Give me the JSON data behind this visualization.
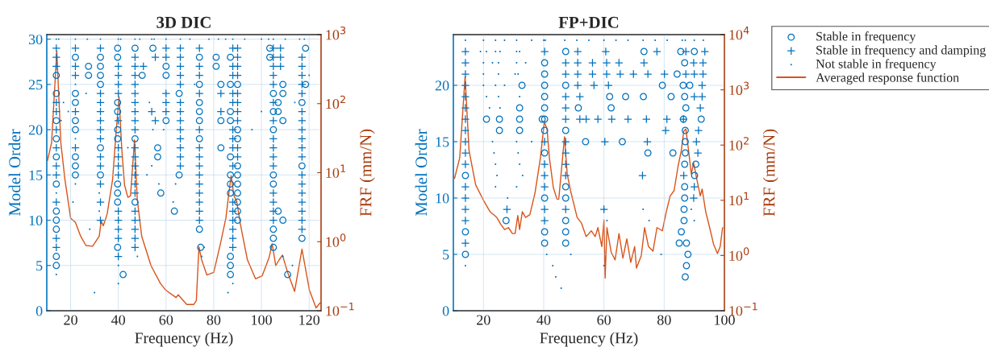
{
  "chart_data": [
    {
      "type": "scatter",
      "title": "3D DIC",
      "xlabel": "Frequency (Hz)",
      "ylabel": "Model Order",
      "y2label": "FRF (mm/N)",
      "xlim": [
        10,
        125
      ],
      "xticks": [
        20,
        40,
        60,
        80,
        100,
        120
      ],
      "ylim": [
        0,
        30.5
      ],
      "yticks": [
        0,
        5,
        10,
        15,
        20,
        25,
        30
      ],
      "y2lim": [
        0.1,
        1000
      ],
      "y2ticks": [
        {
          "value": 0.1,
          "label": "10$^{−1}$"
        },
        {
          "value": 1,
          "label": "10$^{0}$"
        },
        {
          "value": 10,
          "label": "10$^{1}$"
        },
        {
          "value": 100,
          "label": "10$^{2}$"
        },
        {
          "value": 1000,
          "label": "10$^{3}$"
        }
      ],
      "log": "y2",
      "grid": true,
      "legend": false,
      "series": [
        {
          "marker": "circle",
          "color": "#0072bd",
          "x": [
            14,
            14,
            14,
            14,
            14,
            14,
            14,
            14,
            14,
            14,
            14,
            22,
            22,
            22,
            22,
            22,
            22,
            22,
            22,
            27.5,
            27.5,
            32.5,
            32.5,
            32.5,
            32.5,
            32.5,
            32.5,
            39.7,
            39.7,
            39.7,
            39.7,
            39.7,
            39.7,
            39.7,
            39.7,
            39.7,
            39.7,
            42,
            47,
            47,
            47,
            50,
            54.5,
            56.5,
            56.5,
            57.8,
            60,
            60,
            60,
            63.5,
            65.5,
            65.5,
            74.5,
            74,
            74,
            74,
            74,
            74,
            74,
            74,
            81,
            81,
            83,
            83,
            83,
            87,
            87,
            87,
            87,
            87,
            87,
            87,
            87,
            87,
            87,
            87,
            90,
            90,
            90,
            90,
            90,
            90,
            90,
            90,
            90,
            90,
            103.5,
            103.5,
            105,
            105,
            105,
            105,
            105,
            105,
            105,
            105,
            107,
            107,
            107,
            109,
            109,
            109,
            109,
            111,
            117,
            117,
            117,
            118.5,
            118.5
          ],
          "values": [
            5,
            6,
            9,
            10,
            11,
            14,
            17,
            19,
            21,
            24,
            26,
            15,
            16,
            17,
            20,
            21,
            23,
            24,
            28,
            26,
            27,
            15,
            18,
            25,
            26,
            27,
            28,
            7,
            12,
            13,
            14,
            19,
            20,
            22,
            23,
            28,
            29,
            4,
            12,
            19,
            29,
            26,
            29,
            17,
            18,
            13,
            21,
            26,
            27,
            11,
            15,
            24,
            7,
            9,
            19,
            21,
            22,
            23,
            25,
            28,
            27,
            28,
            18,
            21,
            25,
            4,
            5,
            6,
            13,
            14,
            15,
            17,
            21,
            22,
            25,
            28,
            10,
            11,
            12,
            13,
            14,
            15,
            16,
            19,
            20,
            25,
            28,
            29,
            7,
            8,
            9,
            14,
            15,
            20,
            22,
            24,
            11,
            22,
            23,
            10,
            21,
            24,
            25,
            4,
            8,
            16,
            23,
            25,
            29
          ]
        },
        {
          "marker": "cross",
          "color": "#0072bd",
          "x": [
            14,
            14,
            14,
            14,
            14,
            14,
            14,
            14,
            14,
            14,
            14,
            14,
            22,
            22,
            22,
            22,
            22,
            32.5,
            32.5,
            32.5,
            32.5,
            32.5,
            32.5,
            32.5,
            32.5,
            32.5,
            32.5,
            32.5,
            32.5,
            40,
            40,
            40,
            40,
            40,
            40,
            40,
            40,
            40,
            40,
            40,
            40,
            40,
            40,
            47,
            47,
            47,
            47,
            47,
            47,
            47,
            47,
            47,
            47,
            47,
            47,
            47,
            47,
            47,
            47,
            47,
            47,
            47,
            47,
            50.5,
            54,
            55.5,
            55.5,
            60,
            60,
            60,
            60,
            60,
            66,
            66,
            66,
            66,
            66,
            66,
            66,
            66,
            66,
            66,
            66,
            66,
            66,
            74,
            74,
            74,
            74,
            74,
            74,
            74,
            74,
            74,
            74,
            74,
            74,
            74,
            74,
            83,
            83,
            88,
            88,
            88,
            88,
            88,
            88,
            88,
            88,
            88,
            88,
            88,
            88,
            88,
            88,
            88,
            90,
            90,
            90,
            90,
            90,
            90,
            90,
            90,
            90,
            90,
            105,
            105,
            105,
            105,
            105,
            105,
            105,
            105,
            105,
            105,
            105,
            105,
            105,
            105,
            105,
            108,
            108,
            108,
            117,
            117,
            117,
            117,
            117,
            117,
            117,
            117,
            117,
            117,
            117,
            117,
            117,
            117,
            117,
            117,
            117,
            117
          ],
          "values": [
            7,
            8,
            12,
            15,
            16,
            18,
            20,
            22,
            23,
            27,
            28,
            29,
            18,
            22,
            26,
            27,
            29,
            10,
            12,
            14,
            16,
            17,
            19,
            20,
            21,
            22,
            23,
            24,
            29,
            6,
            8,
            9,
            10,
            11,
            15,
            16,
            17,
            18,
            21,
            24,
            25,
            26,
            27,
            7,
            8,
            9,
            10,
            11,
            13,
            14,
            15,
            16,
            17,
            18,
            20,
            21,
            22,
            23,
            24,
            25,
            26,
            27,
            28,
            27,
            22,
            21,
            28,
            22,
            23,
            24,
            28,
            29,
            16,
            17,
            18,
            19,
            20,
            21,
            22,
            23,
            25,
            26,
            27,
            28,
            29,
            10,
            11,
            12,
            13,
            14,
            15,
            16,
            17,
            18,
            20,
            24,
            26,
            27,
            29,
            22,
            24,
            7,
            8,
            9,
            10,
            11,
            12,
            16,
            18,
            19,
            20,
            23,
            24,
            26,
            27,
            29,
            17,
            18,
            21,
            22,
            23,
            24,
            26,
            27,
            28,
            29,
            10,
            11,
            12,
            13,
            16,
            17,
            18,
            19,
            21,
            23,
            25,
            26,
            27,
            28,
            29,
            27,
            28,
            29,
            9,
            10,
            11,
            12,
            13,
            14,
            15,
            17,
            18,
            19,
            20,
            21,
            22,
            24,
            25,
            26,
            27,
            28
          ]
        },
        {
          "marker": "point",
          "color": "#0072bd",
          "x": [
            14,
            15,
            22,
            27,
            32.5,
            40,
            41,
            47,
            49,
            54,
            55,
            60,
            66,
            70,
            78,
            82,
            85,
            88,
            93,
            100,
            103,
            105,
            110,
            116,
            118,
            14,
            14,
            16,
            17,
            19,
            21,
            22,
            22,
            22,
            26.5,
            28,
            30,
            32,
            32,
            40,
            40,
            44,
            48,
            49,
            52,
            53,
            54,
            54.5,
            57,
            59,
            63,
            64,
            72,
            75,
            76,
            86,
            88,
            96,
            100,
            109,
            113,
            114,
            120
          ],
          "values": [
            30,
            30,
            30,
            30,
            30,
            30,
            30,
            30,
            30,
            30,
            30,
            30,
            30,
            30,
            30,
            30,
            30,
            30,
            30,
            30,
            30,
            30,
            30,
            30,
            30,
            4,
            13,
            21,
            23,
            22,
            12,
            14,
            19,
            25,
            24,
            9,
            2,
            11,
            13,
            3,
            5,
            18,
            6,
            10,
            15,
            23,
            16,
            20,
            14,
            20,
            12,
            14,
            25,
            6,
            7,
            2,
            3,
            20,
            22,
            6,
            5,
            23,
            26
          ]
        },
        {
          "type": "line",
          "axis": "y2",
          "color": "#d95319",
          "x": [
            10.3,
            12,
            14.2,
            15.9,
            17.6,
            20,
            22,
            24.2,
            26.4,
            29.2,
            32,
            32.8,
            33.7,
            35.3,
            37.6,
            38.9,
            40.3,
            41.4,
            42.6,
            44,
            45.1,
            46.8,
            47.9,
            49.8,
            53.7,
            57.6,
            59.8,
            64.2,
            65.1,
            68.7,
            71.6,
            72.7,
            73.8,
            74.9,
            77.1,
            80,
            82.8,
            85.1,
            86.2,
            87.3,
            88.5,
            89.6,
            91.3,
            94.1,
            97.5,
            100.3,
            103.2,
            104.5,
            106,
            107.5,
            108.8,
            111.1,
            113.9,
            117,
            120.1,
            122.9,
            124.6
          ],
          "values": [
            15,
            27,
            575,
            27,
            8,
            2.2,
            1.9,
            1.2,
            0.88,
            0.86,
            1.2,
            2,
            1.7,
            2.5,
            8,
            33,
            126,
            23,
            6.6,
            4.4,
            4.6,
            30,
            4.2,
            1.2,
            0.45,
            0.25,
            0.2,
            0.155,
            0.17,
            0.123,
            0.123,
            0.14,
            0.84,
            0.55,
            0.33,
            0.36,
            0.93,
            2.2,
            4.6,
            9,
            4.6,
            3.9,
            1.7,
            0.55,
            0.29,
            0.32,
            0.59,
            0.93,
            0.45,
            0.55,
            0.64,
            0.35,
            0.19,
            0.78,
            0.2,
            0.11,
            0.13
          ]
        }
      ]
    },
    {
      "type": "scatter",
      "title": "FP+DIC",
      "xlabel": "Frequency (Hz)",
      "ylabel": "Model Order",
      "y2label": "FRF (mm/N)",
      "xlim": [
        10,
        100
      ],
      "xticks": [
        20,
        40,
        60,
        80,
        100
      ],
      "ylim": [
        0,
        24.5
      ],
      "yticks": [
        0,
        5,
        10,
        15,
        20
      ],
      "y2lim": [
        0.1,
        10000
      ],
      "y2ticks": [
        {
          "value": 0.1,
          "label": "10$^{−1}$"
        },
        {
          "value": 1,
          "label": "10$^{0}$"
        },
        {
          "value": 10,
          "label": "10$^{1}$"
        },
        {
          "value": 100,
          "label": "10$^{2}$"
        },
        {
          "value": 1000,
          "label": "10$^{3}$"
        },
        {
          "value": 10000,
          "label": "10$^{4}$"
        }
      ],
      "log": "y2",
      "grid": true,
      "legend": "right",
      "series": [
        {
          "marker": "circle",
          "name": "Stable in frequency",
          "color": "#0072bd",
          "x": [
            14,
            14,
            14,
            21,
            25.3,
            25.3,
            27.5,
            32,
            32,
            32,
            32.8,
            40.3,
            40.3,
            40.3,
            40.3,
            40.3,
            40.3,
            40.3,
            40.3,
            40.3,
            40.3,
            40.3,
            39.5,
            47.3,
            47.3,
            47.3,
            47.3,
            47.3,
            47.3,
            47.3,
            47.3,
            51.5,
            53.9,
            61.9,
            62.4,
            66.1,
            67.2,
            73.1,
            73.3,
            74.6,
            79.4,
            82.3,
            82.9,
            84.3,
            85.5,
            90,
            87,
            87.4,
            87.9,
            85,
            87.4,
            85.7,
            86.6,
            86.6,
            86.8,
            86.8,
            86.8,
            87,
            87,
            87,
            86.4,
            87.2,
            86.8,
            86.3,
            88.5,
            86.8,
            90.5,
            90.1,
            92.3
          ],
          "values": [
            5,
            7,
            12,
            17,
            16,
            17,
            8,
            16,
            17,
            18,
            20,
            6,
            7,
            10,
            14,
            16,
            17,
            18,
            19,
            20,
            21,
            22,
            17,
            6,
            7,
            8,
            10,
            11,
            16,
            20,
            23,
            18,
            15,
            19,
            18,
            15,
            19,
            19,
            23,
            14,
            20,
            19,
            14,
            21,
            23,
            23,
            3,
            4,
            5,
            6,
            6,
            7,
            8,
            9,
            10,
            11,
            13,
            14,
            15,
            16,
            17,
            18,
            19,
            20,
            20,
            22,
            13,
            12,
            17
          ]
        },
        {
          "marker": "cross",
          "name": "Stable in frequency and damping",
          "color": "#0072bd",
          "x": [
            14,
            14,
            14,
            14,
            14,
            14,
            14,
            14,
            14,
            14,
            14,
            14,
            14,
            14,
            14,
            14,
            27.8,
            40.3,
            40.3,
            40.3,
            40.3,
            40.3,
            40.3,
            40.3,
            47.3,
            47.3,
            47.3,
            47.3,
            47.3,
            47.3,
            47.3,
            47.3,
            47.3,
            47.3,
            51.3,
            51.3,
            51.3,
            51.3,
            52,
            52,
            60.6,
            77.6,
            87.2,
            93.5,
            56.2,
            60.9,
            65,
            73.3,
            89.8,
            92.9,
            56.2,
            60.9,
            65.4,
            69.8,
            74.6,
            80.1,
            87.2,
            90,
            92.9,
            56.7,
            61.5,
            92.6,
            90,
            92.6,
            92,
            54.1,
            58,
            62.6,
            68,
            74.1,
            80.9,
            86.4,
            80.5,
            91.4,
            60.3,
            74.4,
            90.7,
            91.2,
            72.8,
            86.5,
            90,
            89.8,
            60
          ],
          "values": [
            6,
            8,
            9,
            10,
            11,
            13,
            14,
            15,
            16,
            17,
            18,
            19,
            20,
            21,
            22,
            23,
            9,
            8,
            9,
            11,
            12,
            13,
            15,
            23,
            9,
            12,
            13,
            14,
            15,
            17,
            18,
            19,
            21,
            22,
            20,
            21,
            22,
            23,
            17,
            19,
            23,
            23,
            23,
            23,
            22,
            22,
            22,
            22,
            22,
            22,
            21,
            21,
            21,
            21,
            21,
            21,
            21,
            21,
            21,
            20,
            20,
            20,
            19,
            19,
            18,
            17,
            17,
            17,
            17,
            17,
            17,
            17,
            16,
            16,
            15,
            15,
            15,
            14,
            12,
            12,
            11,
            10,
            9
          ]
        },
        {
          "marker": "point",
          "name": "Not stable in frequency",
          "color": "#0072bd",
          "x": [
            14,
            20,
            24,
            27,
            31,
            36,
            40,
            40.5,
            47,
            51,
            55,
            60,
            64,
            68,
            73,
            77,
            81,
            86,
            87,
            90,
            93,
            14,
            19,
            21,
            24,
            25.5,
            31,
            32,
            20,
            23,
            25,
            31,
            34,
            20,
            25,
            30.5,
            31.5,
            20,
            24,
            27,
            21,
            25,
            32,
            22,
            25.5,
            23,
            31,
            36,
            23.5,
            31.5,
            24,
            32,
            24.5,
            33,
            24,
            31,
            28,
            43,
            44,
            45.8,
            41,
            49,
            60,
            73,
            60,
            79,
            61,
            75,
            89,
            90
          ],
          "values": [
            24,
            24,
            24,
            24,
            24,
            24,
            24,
            24,
            24,
            24,
            24,
            24,
            24,
            24,
            24,
            24,
            24,
            24,
            24,
            24,
            24,
            4,
            23,
            23,
            23,
            23,
            23,
            23,
            22,
            22,
            22,
            22,
            22,
            21,
            21,
            21,
            21,
            20,
            20,
            20,
            19,
            19,
            19,
            18,
            18,
            15,
            15,
            15,
            14,
            14,
            13,
            13,
            12,
            12,
            11,
            11,
            10,
            4,
            3,
            2,
            5,
            5,
            9,
            9,
            4,
            5,
            8,
            8,
            9,
            8
          ]
        },
        {
          "type": "line",
          "axis": "y2",
          "name": "Averaged response function",
          "color": "#d95319",
          "x": [
            10.4,
            12.1,
            13.9,
            15.2,
            17.4,
            20,
            22.2,
            24.4,
            25.7,
            27,
            28.3,
            29.6,
            30.5,
            31.4,
            32,
            32.9,
            34,
            35.4,
            37.1,
            38.9,
            40.2,
            41.1,
            41.9,
            43.2,
            44.4,
            45,
            46.9,
            47.8,
            48.9,
            51.1,
            52.5,
            54.1,
            55.8,
            57.1,
            58,
            59.3,
            60,
            60.4,
            61,
            62.4,
            63.7,
            65,
            66.3,
            67.6,
            68.9,
            70.2,
            70.8,
            72.4,
            73.5,
            74.8,
            76.3,
            77.6,
            79.4,
            80.7,
            82,
            83.3,
            84.6,
            85.7,
            86.5,
            87.2,
            88.1,
            89,
            89.8,
            90.9,
            92,
            92.6,
            93.8,
            95.1,
            96.4,
            97.7,
            98.6,
            99.4
          ],
          "values": [
            25,
            58,
            1740,
            80,
            19,
            10,
            6.2,
            4.9,
            3.7,
            2.95,
            3.2,
            2.5,
            2.5,
            5.3,
            2.95,
            6.2,
            4.9,
            5.5,
            13.5,
            58,
            263,
            196,
            58,
            17,
            10.5,
            10.5,
            141,
            30,
            15,
            4.9,
            3.9,
            2.2,
            2.8,
            2.2,
            3.2,
            1.45,
            4.4,
            0.39,
            3.2,
            1.15,
            0.83,
            2.5,
            0.9,
            2,
            0.75,
            1.45,
            0.59,
            1,
            3.2,
            1.45,
            1.2,
            3.2,
            2.8,
            6.2,
            12,
            15,
            41,
            80,
            178,
            196,
            80,
            30,
            47,
            23,
            12,
            16,
            6.2,
            3.2,
            1.6,
            1.08,
            1.45,
            3.2
          ]
        }
      ]
    }
  ]
}
